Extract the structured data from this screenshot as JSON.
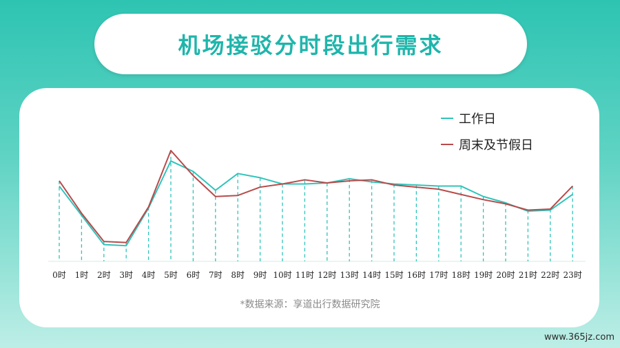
{
  "title": "机场接驳分时段出行需求",
  "source_note": "*数据来源：享道出行数据研究院",
  "watermark": "www.365jz.com",
  "colors": {
    "workday": "#2ec4bb",
    "weekend": "#b84a4a",
    "title": "#1fb5ab"
  },
  "chart_data": {
    "type": "line",
    "title": "机场接驳分时段出行需求",
    "xlabel": "",
    "ylabel": "",
    "grid": false,
    "legend": "top-right",
    "categories": [
      "0时",
      "1时",
      "2时",
      "3时",
      "4时",
      "5时",
      "6时",
      "7时",
      "8时",
      "9时",
      "10时",
      "11时",
      "12时",
      "13时",
      "14时",
      "15时",
      "16时",
      "17时",
      "18时",
      "19时",
      "20时",
      "21时",
      "22时",
      "23时"
    ],
    "ylim": [
      0,
      100
    ],
    "series": [
      {
        "name": "工作日",
        "values": [
          72,
          44,
          16,
          15,
          51,
          96,
          86,
          68,
          84,
          80,
          74,
          74,
          75,
          79,
          76,
          74,
          73,
          72,
          72,
          62,
          56,
          48,
          49,
          64
        ]
      },
      {
        "name": "周末及节假日",
        "values": [
          77,
          46,
          19,
          18,
          52,
          106,
          82,
          62,
          63,
          71,
          74,
          78,
          75,
          77,
          78,
          73,
          71,
          69,
          64,
          59,
          55,
          49,
          50,
          72
        ]
      }
    ]
  }
}
